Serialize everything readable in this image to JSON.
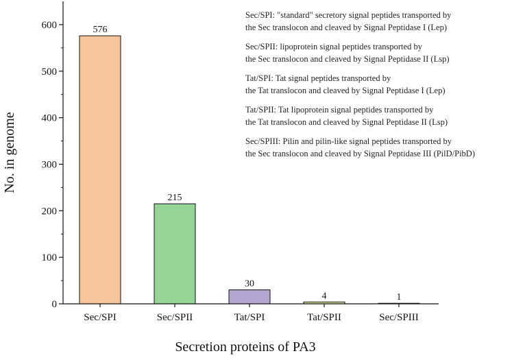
{
  "chart_data": {
    "type": "bar",
    "categories": [
      "Sec/SPI",
      "Sec/SPII",
      "Tat/SPI",
      "Tat/SPII",
      "Sec/SPIII"
    ],
    "values": [
      576,
      215,
      30,
      4,
      1
    ],
    "data_labels": [
      "576",
      "215",
      "30",
      "4",
      "1"
    ],
    "bar_colors": [
      "#F8C499",
      "#95D396",
      "#B3A6CE",
      "#DCE39E",
      "#9AA0CE"
    ],
    "xlabel": "Secretion proteins of PA3",
    "ylabel": "No. in genome",
    "ylim": [
      0,
      650
    ],
    "yticks": [
      0,
      100,
      200,
      300,
      400,
      500,
      600
    ],
    "grid": false,
    "legend_position": "top-right",
    "annotations": [
      [
        "Sec/SPI: \"standard\" secretory signal peptides transported by",
        "the Sec translocon and cleaved by Signal Peptidase I (Lep)"
      ],
      [
        "Sec/SPII: lipoprotein signal peptides transported by",
        "the Sec translocon and cleaved by Signal Peptidase II (Lsp)"
      ],
      [
        "Tat/SPI: Tat signal peptides transported by",
        "the Tat translocon and cleaved by Signal Peptidase I (Lep)"
      ],
      [
        "Tat/SPII: Tat lipoprotein signal peptides transported by",
        "the Tat translocon and cleaved by Signal Peptidase II (Lsp)"
      ],
      [
        "Sec/SPIII: Pilin and pilin-like signal peptides transported by",
        "the Sec translocon and cleaved by Signal Peptidase III (PilD/PibD)"
      ]
    ]
  }
}
